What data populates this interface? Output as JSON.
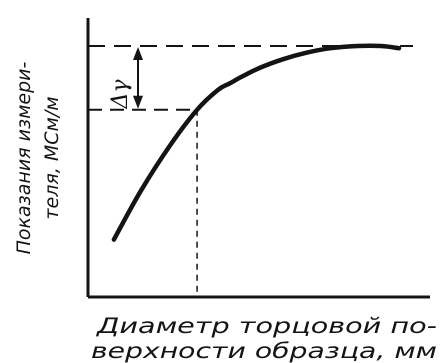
{
  "chart_data": {
    "type": "line",
    "ylabel_lines": [
      "Показания измери-",
      "теля, МСм/м"
    ],
    "xlabel_lines": [
      "Диаметр торцовой по-",
      "верхности образца, мм"
    ],
    "delta_label": "Δγ",
    "x_ticks": [],
    "y_ticks": [],
    "xlim": [
      0,
      1
    ],
    "ylim": [
      0,
      1
    ],
    "series": [
      {
        "x": [
          0.03,
          0.12,
          0.22,
          0.31,
          0.38,
          0.42,
          0.46,
          0.52,
          0.6,
          0.68,
          0.76,
          0.85,
          0.93,
          0.99
        ],
        "values": [
          0.12,
          0.34,
          0.55,
          0.71,
          0.8,
          0.83,
          0.86,
          0.9,
          0.94,
          0.97,
          0.99,
          1.0,
          1.0,
          0.99
        ]
      }
    ],
    "knee": {
      "x": 0.31,
      "y": 0.71
    },
    "plateau": {
      "x": 0.99,
      "y": 1.0
    }
  }
}
